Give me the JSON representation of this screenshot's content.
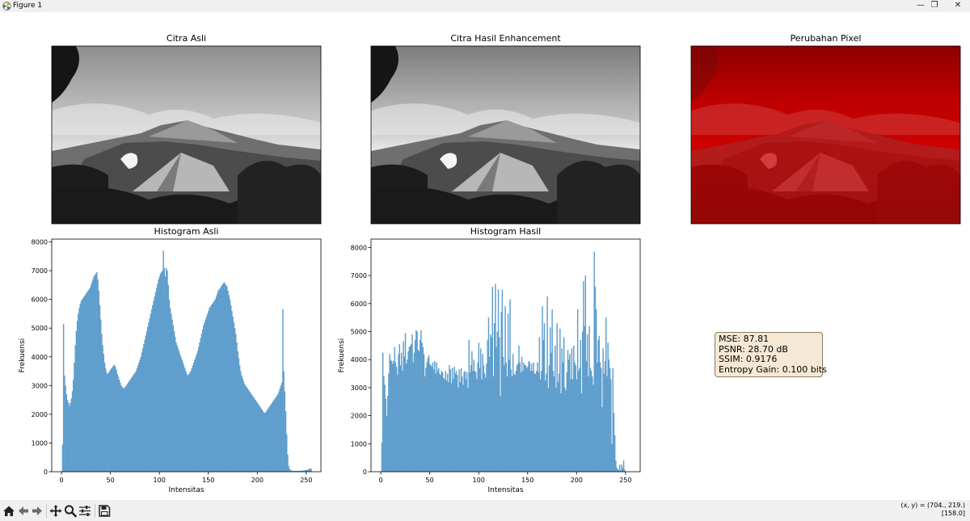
{
  "window": {
    "title": "Figure 1",
    "minimize_label": "—",
    "maximize_label": "❐",
    "close_label": "✕"
  },
  "panels": {
    "original_image": {
      "title": "Citra Asli"
    },
    "enhanced_image": {
      "title": "Citra Hasil Enhancement"
    },
    "diff_image": {
      "title": "Perubahan Pixel"
    }
  },
  "metrics": {
    "mse": "MSE: 87.81",
    "psnr": "PSNR: 28.70 dB",
    "ssim": "SSIM: 0.9176",
    "entropy": "Entropy Gain: 0.100 bits"
  },
  "toolbar": {
    "icons": [
      "home-icon",
      "back-icon",
      "forward-icon",
      "pan-icon",
      "zoom-icon",
      "configure-subplots-icon",
      "save-icon"
    ],
    "coords_line1": "(x, y) = (704., 219.)",
    "coords_line2": "[158.0]"
  },
  "colors": {
    "bar": "#5f9ecd",
    "diff": "#c80000",
    "box_bg": "#f5e9d5"
  },
  "chart_data": [
    {
      "type": "bar",
      "title": "Histogram Asli",
      "xlabel": "Intensitas",
      "ylabel": "Frekuensi",
      "xlim": [
        -10,
        265
      ],
      "ylim": [
        0,
        8100
      ],
      "xticks": [
        0,
        50,
        100,
        150,
        200,
        250
      ],
      "yticks": [
        0,
        1000,
        2000,
        3000,
        4000,
        5000,
        6000,
        7000,
        8000
      ],
      "x_start": 0,
      "values": [
        0,
        950,
        5150,
        3350,
        3000,
        2700,
        2500,
        2400,
        2300,
        2400,
        2550,
        2800,
        3200,
        3800,
        4400,
        4900,
        5250,
        5500,
        5700,
        5850,
        5950,
        6000,
        6050,
        6100,
        6150,
        6200,
        6250,
        6300,
        6350,
        6400,
        6500,
        6600,
        6700,
        6800,
        6850,
        6900,
        6950,
        6700,
        6300,
        5800,
        5300,
        4800,
        4400,
        4100,
        3800,
        3600,
        3450,
        3400,
        3450,
        3500,
        3550,
        3600,
        3650,
        3700,
        3720,
        3650,
        3550,
        3400,
        3300,
        3200,
        3100,
        3000,
        2950,
        2900,
        2920,
        2950,
        3000,
        3050,
        3100,
        3150,
        3200,
        3250,
        3300,
        3350,
        3400,
        3450,
        3500,
        3600,
        3700,
        3800,
        3900,
        4000,
        4150,
        4300,
        4450,
        4600,
        4750,
        4900,
        5050,
        5200,
        5350,
        5500,
        5650,
        5800,
        5950,
        6100,
        6250,
        6400,
        6550,
        6700,
        6800,
        6900,
        6950,
        7000,
        7700,
        7100,
        6800,
        7100,
        7000,
        6500,
        6000,
        5700,
        5500,
        5300,
        5100,
        4900,
        4700,
        4500,
        4400,
        4300,
        4200,
        4100,
        4000,
        3900,
        3800,
        3700,
        3600,
        3500,
        3400,
        3350,
        3400,
        3450,
        3500,
        3600,
        3700,
        3800,
        3900,
        4000,
        4100,
        4200,
        4350,
        4500,
        4650,
        4800,
        4950,
        5100,
        5200,
        5300,
        5400,
        5500,
        5600,
        5700,
        5750,
        5800,
        5850,
        5900,
        5950,
        6000,
        6100,
        6200,
        6300,
        6350,
        6400,
        6450,
        6500,
        6550,
        6600,
        6550,
        6500,
        6450,
        6300,
        6150,
        6000,
        5800,
        5600,
        5400,
        5200,
        5000,
        4800,
        4500,
        4200,
        3950,
        3700,
        3500,
        3350,
        3250,
        3150,
        3050,
        3000,
        2950,
        2900,
        2850,
        2800,
        2750,
        2700,
        2650,
        2600,
        2550,
        2500,
        2450,
        2400,
        2350,
        2300,
        2250,
        2200,
        2150,
        2100,
        2050,
        2050,
        2100,
        2150,
        2200,
        2250,
        2300,
        2350,
        2400,
        2450,
        2500,
        2550,
        2600,
        2650,
        2700,
        2800,
        2900,
        3000,
        3100,
        5650,
        3500,
        2800,
        2100,
        1300,
        600,
        200,
        100,
        60,
        40,
        30,
        30,
        30,
        30,
        30,
        30,
        30,
        30,
        30,
        40,
        40,
        40,
        50,
        50,
        60,
        70,
        80,
        100,
        120,
        100
      ]
    },
    {
      "type": "bar",
      "title": "Histogram Hasil",
      "xlabel": "Intensitas",
      "ylabel": "Frekuensi",
      "xlim": [
        -10,
        265
      ],
      "ylim": [
        0,
        8300
      ],
      "xticks": [
        0,
        50,
        100,
        150,
        200,
        250
      ],
      "yticks": [
        0,
        1000,
        2000,
        3000,
        4000,
        5000,
        6000,
        7000,
        8000
      ],
      "x_start": 0,
      "values": [
        0,
        1050,
        4250,
        3400,
        3100,
        2600,
        2000,
        2700,
        3500,
        4200,
        4000,
        3950,
        3850,
        3950,
        4450,
        3900,
        3750,
        3450,
        4200,
        4550,
        3800,
        4250,
        3600,
        4650,
        4100,
        4950,
        3850,
        4000,
        4300,
        4450,
        4500,
        4550,
        4900,
        3900,
        4250,
        4700,
        5050,
        5000,
        4350,
        4300,
        4700,
        5050,
        4600,
        4450,
        4200,
        3400,
        3700,
        3900,
        4050,
        4150,
        3850,
        3800,
        3750,
        3900,
        3650,
        3950,
        3500,
        3900,
        3600,
        3700,
        3500,
        3450,
        3600,
        3550,
        3350,
        3300,
        3600,
        3250,
        3500,
        3200,
        3800,
        3650,
        3150,
        3700,
        3300,
        3750,
        3500,
        3600,
        3450,
        3000,
        3650,
        3200,
        3700,
        3400,
        3100,
        3550,
        3600,
        3300,
        3550,
        3000,
        4700,
        3550,
        3800,
        4300,
        3600,
        4000,
        3600,
        3550,
        3300,
        3900,
        4600,
        3700,
        4400,
        3300,
        4200,
        3800,
        3500,
        3350,
        3850,
        4700,
        5500,
        4100,
        4900,
        4800,
        6600,
        3400,
        5300,
        6700,
        4450,
        5000,
        6500,
        4800,
        2700,
        5700,
        6500,
        4100,
        3800,
        5900,
        3900,
        3400,
        5650,
        4000,
        6150,
        3650,
        3400,
        4200,
        3500,
        3450,
        3600,
        3800,
        3850,
        4500,
        3900,
        3550,
        4100,
        3600,
        3900,
        3800,
        3800,
        3700,
        3750,
        3950,
        3900,
        3600,
        3850,
        3600,
        3900,
        3500,
        3500,
        3600,
        3900,
        3550,
        4800,
        3300,
        3600,
        5900,
        4700,
        5300,
        3250,
        3500,
        6250,
        3000,
        3800,
        5150,
        4250,
        5800,
        3600,
        3400,
        4500,
        3000,
        5300,
        3200,
        3500,
        5100,
        2800,
        4400,
        3900,
        4800,
        3000,
        2900,
        3550,
        4350,
        4000,
        4200,
        3300,
        4400,
        3300,
        4500,
        3900,
        3800,
        3300,
        5800,
        3600,
        3700,
        4700,
        2800,
        5000,
        6800,
        5200,
        7000,
        3950,
        4900,
        3400,
        5200,
        3700,
        3600,
        3400,
        3100,
        7850,
        6600,
        5800,
        3900,
        4700,
        4850,
        3900,
        3700,
        2300,
        4400,
        3500,
        3950,
        5500,
        3400,
        4600,
        4000,
        3700,
        3300,
        1000,
        3700,
        2100,
        1300,
        400,
        150,
        90,
        60,
        250,
        50,
        250,
        130,
        400,
        80,
        0,
        0,
        0,
        0,
        0,
        0
      ]
    }
  ]
}
